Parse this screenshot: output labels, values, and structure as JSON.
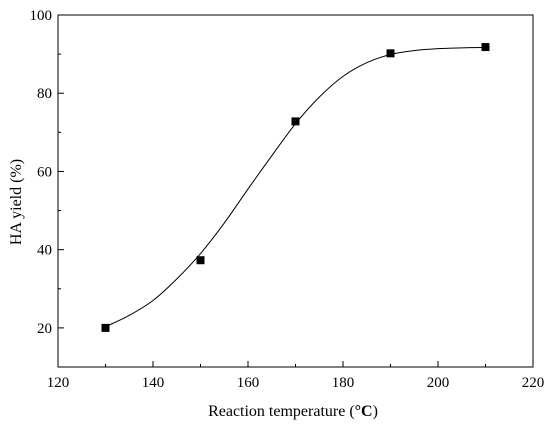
{
  "chart_data": {
    "type": "scatter",
    "xlabel_main": "Reaction temperature (",
    "xlabel_unit": "°C",
    "xlabel_close": ")",
    "ylabel": "HA yield (%)",
    "xlim": [
      120,
      220
    ],
    "ylim": [
      10,
      100
    ],
    "xticks": [
      120,
      140,
      160,
      180,
      200,
      220
    ],
    "yticks": [
      20,
      40,
      60,
      80,
      100
    ],
    "grid": false,
    "legend": "none",
    "series": [
      {
        "marker": "square",
        "color": "#000000",
        "points": [
          {
            "x": 130,
            "y": 20.0
          },
          {
            "x": 150,
            "y": 37.3
          },
          {
            "x": 170,
            "y": 72.8
          },
          {
            "x": 190,
            "y": 90.2
          },
          {
            "x": 210,
            "y": 91.8
          }
        ]
      }
    ],
    "fit_curve": {
      "type": "sigmoid",
      "color": "#000000",
      "points": [
        {
          "x": 130,
          "y": 20.3
        },
        {
          "x": 135,
          "y": 23.2
        },
        {
          "x": 140,
          "y": 27.0
        },
        {
          "x": 145,
          "y": 32.5
        },
        {
          "x": 150,
          "y": 39.0
        },
        {
          "x": 155,
          "y": 46.8
        },
        {
          "x": 160,
          "y": 55.5
        },
        {
          "x": 165,
          "y": 64.0
        },
        {
          "x": 170,
          "y": 72.2
        },
        {
          "x": 175,
          "y": 79.0
        },
        {
          "x": 180,
          "y": 84.3
        },
        {
          "x": 185,
          "y": 87.8
        },
        {
          "x": 190,
          "y": 89.9
        },
        {
          "x": 195,
          "y": 90.9
        },
        {
          "x": 200,
          "y": 91.4
        },
        {
          "x": 205,
          "y": 91.6
        },
        {
          "x": 210,
          "y": 91.7
        }
      ]
    }
  }
}
